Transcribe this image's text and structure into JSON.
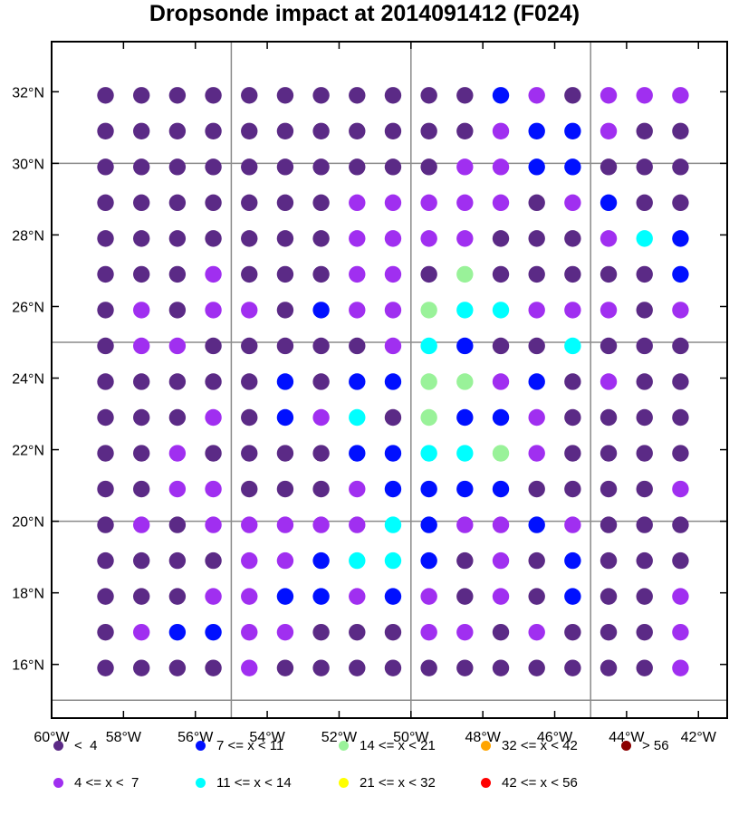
{
  "title": "Dropsonde impact at 2014091412 (F024)",
  "chart_data": {
    "type": "scatter",
    "x_axis": {
      "ticks": [
        -60,
        -58,
        -56,
        -54,
        -52,
        -50,
        -48,
        -46,
        -44,
        -42
      ],
      "tick_labels": [
        "60°W",
        "58°W",
        "56°W",
        "54°W",
        "52°W",
        "50°W",
        "48°W",
        "46°W",
        "44°W",
        "42°W"
      ],
      "range": [
        -60,
        -41.2
      ]
    },
    "y_axis": {
      "ticks": [
        16,
        18,
        20,
        22,
        24,
        26,
        28,
        30,
        32
      ],
      "tick_labels": [
        "16°N",
        "18°N",
        "20°N",
        "22°N",
        "24°N",
        "26°N",
        "28°N",
        "30°N",
        "32°N"
      ],
      "range": [
        14.5,
        33.4
      ]
    },
    "gridlines_lon": [
      -55,
      -50,
      -45
    ],
    "gridlines_lat": [
      15,
      20,
      25,
      30
    ],
    "longitudes": [
      -58.5,
      -57.5,
      -56.5,
      -55.5,
      -54.5,
      -53.5,
      -52.5,
      -51.5,
      -50.5,
      -49.5,
      -48.5,
      -47.5,
      -46.5,
      -45.5,
      -44.5,
      -43.5,
      -42.5
    ],
    "latitudes": [
      31.9,
      30.9,
      29.9,
      28.9,
      27.9,
      26.9,
      25.9,
      24.9,
      23.9,
      22.9,
      21.9,
      20.9,
      19.9,
      18.9,
      17.9,
      16.9,
      15.9
    ],
    "categories": [
      {
        "id": 0,
        "label": "<  4",
        "color": "#5b2a86"
      },
      {
        "id": 1,
        "label": "4 <= x <  7",
        "color": "#a02ff0"
      },
      {
        "id": 2,
        "label": "7 <= x < 11",
        "color": "#0010ff"
      },
      {
        "id": 3,
        "label": "11 <= x < 14",
        "color": "#00ffff"
      },
      {
        "id": 4,
        "label": "14 <= x < 21",
        "color": "#99f299"
      },
      {
        "id": 5,
        "label": "21 <= x < 32",
        "color": "#ffff00"
      },
      {
        "id": 6,
        "label": "32 <= x < 42",
        "color": "#ffa500"
      },
      {
        "id": 7,
        "label": "42 <= x < 56",
        "color": "#ff0000"
      },
      {
        "id": 8,
        "label": "> 56",
        "color": "#8b0000"
      }
    ],
    "grid_values": [
      [
        0,
        0,
        0,
        0,
        0,
        0,
        0,
        0,
        0,
        0,
        0,
        2,
        1,
        0,
        1,
        1,
        1
      ],
      [
        0,
        0,
        0,
        0,
        0,
        0,
        0,
        0,
        0,
        0,
        0,
        1,
        2,
        2,
        1,
        0,
        0
      ],
      [
        0,
        0,
        0,
        0,
        0,
        0,
        0,
        0,
        0,
        0,
        1,
        1,
        2,
        2,
        0,
        0,
        0
      ],
      [
        0,
        0,
        0,
        0,
        0,
        0,
        0,
        1,
        1,
        1,
        1,
        1,
        0,
        1,
        2,
        0,
        0
      ],
      [
        0,
        0,
        0,
        0,
        0,
        0,
        0,
        1,
        1,
        1,
        1,
        0,
        0,
        0,
        1,
        3,
        2
      ],
      [
        0,
        0,
        0,
        1,
        0,
        0,
        0,
        1,
        1,
        0,
        4,
        0,
        0,
        0,
        0,
        0,
        2
      ],
      [
        0,
        1,
        0,
        1,
        1,
        0,
        2,
        1,
        1,
        4,
        3,
        3,
        1,
        1,
        1,
        0,
        1
      ],
      [
        0,
        1,
        1,
        0,
        0,
        0,
        0,
        0,
        1,
        3,
        2,
        0,
        0,
        3,
        0,
        0,
        0
      ],
      [
        0,
        0,
        0,
        0,
        0,
        2,
        0,
        2,
        2,
        4,
        4,
        1,
        2,
        0,
        1,
        0,
        0
      ],
      [
        0,
        0,
        0,
        1,
        0,
        2,
        1,
        3,
        0,
        4,
        2,
        2,
        1,
        0,
        0,
        0,
        0
      ],
      [
        0,
        0,
        1,
        0,
        0,
        0,
        0,
        2,
        2,
        3,
        3,
        4,
        1,
        0,
        0,
        0,
        0
      ],
      [
        0,
        0,
        1,
        1,
        0,
        0,
        0,
        1,
        2,
        2,
        2,
        2,
        0,
        0,
        0,
        0,
        1
      ],
      [
        0,
        1,
        0,
        1,
        1,
        1,
        1,
        1,
        3,
        2,
        1,
        1,
        2,
        1,
        0,
        0,
        0
      ],
      [
        0,
        0,
        0,
        0,
        1,
        1,
        2,
        3,
        3,
        2,
        0,
        1,
        0,
        2,
        0,
        0,
        0
      ],
      [
        0,
        0,
        0,
        1,
        1,
        2,
        2,
        1,
        2,
        1,
        0,
        1,
        0,
        2,
        0,
        0,
        1
      ],
      [
        0,
        1,
        2,
        2,
        1,
        1,
        0,
        0,
        0,
        1,
        1,
        0,
        1,
        0,
        0,
        0,
        1
      ],
      [
        0,
        0,
        0,
        0,
        1,
        0,
        0,
        0,
        0,
        0,
        0,
        0,
        0,
        0,
        0,
        0,
        1
      ]
    ],
    "legend_layout": [
      [
        0,
        2,
        4,
        6,
        8
      ],
      [
        1,
        3,
        5,
        7
      ]
    ]
  }
}
